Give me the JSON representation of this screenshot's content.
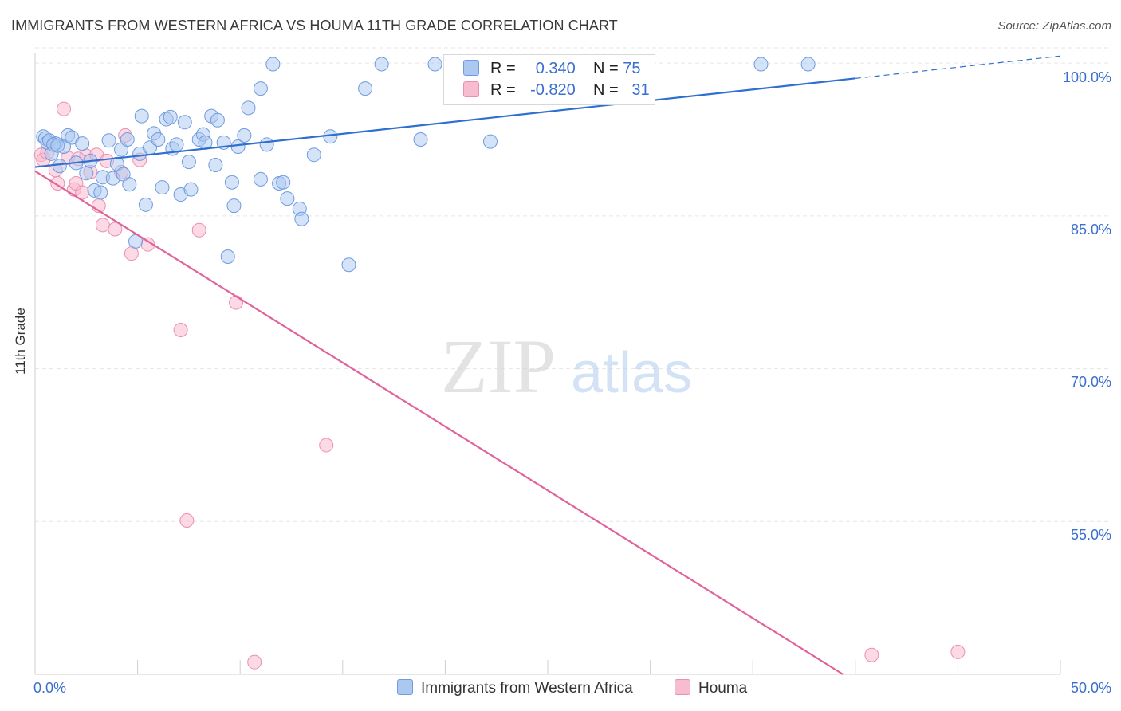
{
  "header": {
    "title": "IMMIGRANTS FROM WESTERN AFRICA VS HOUMA 11TH GRADE CORRELATION CHART",
    "source": "Source: ZipAtlas.com"
  },
  "legend_top": {
    "row1": {
      "r_label": "R =",
      "r_value": "0.340",
      "n_label": "N =",
      "n_value": "75"
    },
    "row2": {
      "r_label": "R =",
      "r_value": "-0.820",
      "n_label": "N =",
      "n_value": "31"
    }
  },
  "legend_bottom": {
    "item1": "Immigrants from Western Africa",
    "item2": "Houma"
  },
  "watermark": {
    "part1": "ZIP",
    "part2": "atlas"
  },
  "colors": {
    "blue_fill": "#aac8f0",
    "blue_stroke": "#6f9be0",
    "blue_line": "#2f6fd0",
    "pink_fill": "#f7bcd0",
    "pink_stroke": "#eb8fb0",
    "pink_line": "#e0639a",
    "tick_label": "#3a6fcf",
    "grid": "#e6e6e6"
  },
  "chart_data": {
    "type": "scatter",
    "title": "IMMIGRANTS FROM WESTERN AFRICA VS HOUMA 11TH GRADE CORRELATION CHART",
    "xlabel": "",
    "ylabel": "11th Grade",
    "xlim": [
      0,
      50
    ],
    "ylim": [
      40,
      101.5
    ],
    "x_tick_labels": [
      "0.0%",
      "50.0%"
    ],
    "y_ticks": [
      55,
      70,
      85,
      100
    ],
    "y_tick_labels": [
      "55.0%",
      "70.0%",
      "85.0%",
      "100.0%"
    ],
    "grid": true,
    "series": [
      {
        "name": "Immigrants from Western Africa",
        "r": 0.34,
        "n": 75,
        "trend": {
          "x0": 0,
          "y0": 89.8,
          "x1": 40,
          "y1": 98.5,
          "dashed_to_x": 50,
          "dashed_to_y": 100.7
        },
        "points": [
          [
            0.4,
            92.8
          ],
          [
            0.5,
            92.6
          ],
          [
            0.6,
            92.2
          ],
          [
            0.7,
            92.4
          ],
          [
            0.8,
            91.1
          ],
          [
            1.0,
            92.1
          ],
          [
            1.2,
            89.9
          ],
          [
            1.4,
            91.8
          ],
          [
            1.6,
            92.9
          ],
          [
            1.8,
            92.7
          ],
          [
            2.0,
            90.2
          ],
          [
            2.3,
            92.1
          ],
          [
            2.5,
            89.2
          ],
          [
            2.7,
            90.4
          ],
          [
            2.9,
            87.5
          ],
          [
            3.2,
            87.3
          ],
          [
            3.3,
            88.8
          ],
          [
            3.6,
            92.4
          ],
          [
            3.8,
            88.7
          ],
          [
            4.0,
            90.1
          ],
          [
            4.2,
            91.5
          ],
          [
            4.3,
            89.1
          ],
          [
            4.5,
            92.5
          ],
          [
            4.6,
            88.1
          ],
          [
            4.9,
            82.5
          ],
          [
            5.1,
            91.1
          ],
          [
            5.2,
            94.8
          ],
          [
            5.4,
            86.1
          ],
          [
            5.6,
            91.7
          ],
          [
            5.8,
            93.1
          ],
          [
            6.0,
            92.5
          ],
          [
            6.2,
            87.8
          ],
          [
            6.4,
            94.5
          ],
          [
            6.6,
            94.7
          ],
          [
            6.7,
            91.6
          ],
          [
            6.9,
            92.0
          ],
          [
            7.1,
            87.1
          ],
          [
            7.3,
            94.2
          ],
          [
            7.5,
            90.3
          ],
          [
            7.6,
            87.6
          ],
          [
            8.0,
            92.5
          ],
          [
            8.2,
            93.0
          ],
          [
            8.3,
            92.2
          ],
          [
            8.6,
            94.8
          ],
          [
            8.8,
            90.0
          ],
          [
            8.9,
            94.4
          ],
          [
            9.2,
            92.2
          ],
          [
            9.4,
            81.0
          ],
          [
            9.6,
            88.3
          ],
          [
            9.7,
            86.0
          ],
          [
            9.9,
            91.8
          ],
          [
            10.2,
            92.9
          ],
          [
            10.4,
            95.6
          ],
          [
            11.0,
            97.5
          ],
          [
            11.0,
            88.6
          ],
          [
            11.3,
            92.0
          ],
          [
            11.6,
            99.9
          ],
          [
            11.9,
            88.2
          ],
          [
            12.1,
            88.3
          ],
          [
            12.3,
            86.7
          ],
          [
            12.9,
            85.7
          ],
          [
            13.0,
            84.7
          ],
          [
            13.6,
            91.0
          ],
          [
            14.4,
            92.8
          ],
          [
            15.3,
            80.2
          ],
          [
            16.1,
            97.5
          ],
          [
            16.9,
            99.9
          ],
          [
            18.8,
            92.5
          ],
          [
            19.5,
            99.9
          ],
          [
            22.2,
            92.3
          ],
          [
            23.4,
            99.9
          ],
          [
            35.4,
            99.9
          ],
          [
            37.7,
            99.9
          ],
          [
            0.9,
            92.0
          ],
          [
            1.1,
            91.9
          ]
        ]
      },
      {
        "name": "Houma",
        "r": -0.82,
        "n": 31,
        "trend": {
          "x0": 0,
          "y0": 89.4,
          "x1": 39.4,
          "y1": 40.0
        },
        "points": [
          [
            0.3,
            91.0
          ],
          [
            0.4,
            90.5
          ],
          [
            0.6,
            91.2
          ],
          [
            1.0,
            89.5
          ],
          [
            1.1,
            88.2
          ],
          [
            1.4,
            95.5
          ],
          [
            1.6,
            90.7
          ],
          [
            1.9,
            87.6
          ],
          [
            2.0,
            88.2
          ],
          [
            2.3,
            87.3
          ],
          [
            2.5,
            90.9
          ],
          [
            2.7,
            89.3
          ],
          [
            3.0,
            91.0
          ],
          [
            3.1,
            86.0
          ],
          [
            3.3,
            84.1
          ],
          [
            3.5,
            90.4
          ],
          [
            3.9,
            83.7
          ],
          [
            4.2,
            89.3
          ],
          [
            4.4,
            92.9
          ],
          [
            4.7,
            81.3
          ],
          [
            5.1,
            90.5
          ],
          [
            5.5,
            82.2
          ],
          [
            7.1,
            73.8
          ],
          [
            7.4,
            55.1
          ],
          [
            8.0,
            83.6
          ],
          [
            9.8,
            76.5
          ],
          [
            10.7,
            41.2
          ],
          [
            14.2,
            62.5
          ],
          [
            40.8,
            41.9
          ],
          [
            45.0,
            42.2
          ],
          [
            2.1,
            90.6
          ]
        ]
      }
    ]
  }
}
